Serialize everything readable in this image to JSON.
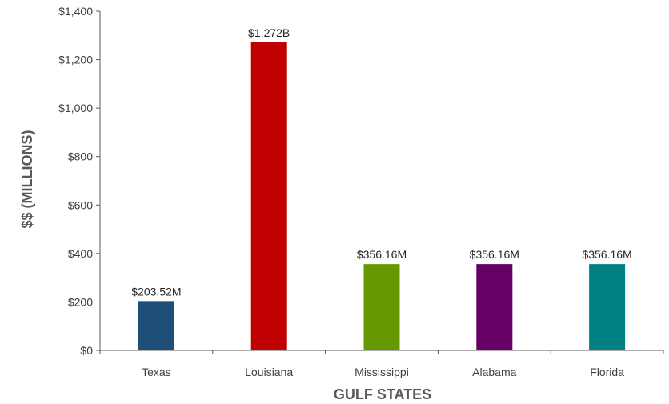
{
  "chart_data": {
    "type": "bar",
    "title": "",
    "xlabel": "GULF STATES",
    "ylabel": "$$ (MILLIONS)",
    "categories": [
      "Texas",
      "Louisiana",
      "Mississippi",
      "Alabama",
      "Florida"
    ],
    "values": [
      203.52,
      1272,
      356.16,
      356.16,
      356.16
    ],
    "data_labels": [
      "$203.52M",
      "$1.272B",
      "$356.16M",
      "$356.16M",
      "$356.16M"
    ],
    "colors": [
      "#1F4E79",
      "#C00000",
      "#669900",
      "#660066",
      "#008080"
    ],
    "ylim": [
      0,
      1400
    ],
    "yticks": [
      0,
      200,
      400,
      600,
      800,
      1000,
      1200,
      1400
    ],
    "ytick_labels": [
      "$0",
      "$200",
      "$400",
      "$600",
      "$800",
      "$1,000",
      "$1,200",
      "$1,400"
    ],
    "grid": false,
    "legend": "none"
  }
}
